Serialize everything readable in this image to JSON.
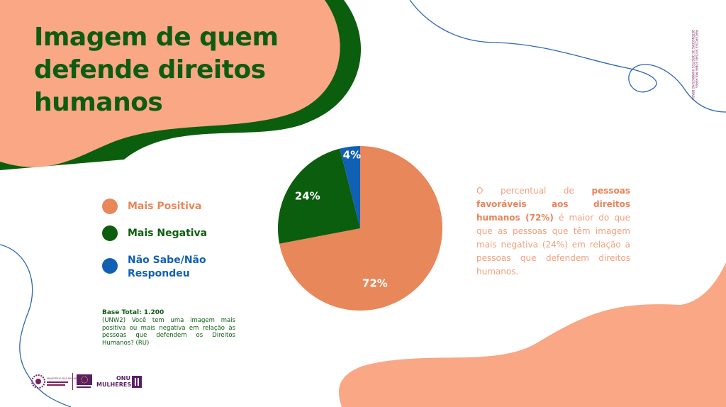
{
  "title": "Imagem de quem defende direitos humanos",
  "side_note": "PERCEPÇÕES SOCIAIS SOBRE MULHERES DEFENSORAS DE DIREITOS HUMANOS NO BRASIL",
  "colors": {
    "peach": "#f9a784",
    "orange": "#e8875a",
    "green": "#0b5e0d",
    "blue": "#1060b4",
    "line_blue": "#2e67b1",
    "text_light_orange": "#f0a07e"
  },
  "legend": [
    {
      "label": "Mais Positiva",
      "color": "#e8875a"
    },
    {
      "label": "Mais Negativa",
      "color": "#0b5e0d"
    },
    {
      "label": "Não Sabe/Não Respondeu",
      "color": "#1060b4"
    }
  ],
  "base": {
    "total": "Base Total: 1.200",
    "question": "(UNW2) Você tem uma imagem mais positiva ou mais negativa em relação às pessoas que defendem os Direitos Humanos? (RU)"
  },
  "description": {
    "before": "O percentual de",
    "highlight": "pessoas favoráveis aos direitos humanos (72%)",
    "after": "é maior do que que as pessoas que têm imagem mais negativa (24%) em relação a pessoas que defendem direitos humanos."
  },
  "chart_data": {
    "type": "pie",
    "title": "",
    "slices": [
      {
        "label": "Mais Positiva",
        "value": 72,
        "display": "72%",
        "color": "#e8875a"
      },
      {
        "label": "Mais Negativa",
        "value": 24,
        "display": "24%",
        "color": "#0b5e0d"
      },
      {
        "label": "Não Sabe/Não Respondeu",
        "value": 4,
        "display": "4%",
        "color": "#1060b4"
      }
    ],
    "start": "12 o'clock, clockwise"
  },
  "footer": {
    "logo1_text": "MINISTÉRIO DAS MULHERES",
    "logo3_text_top": "ONU",
    "logo3_text_bottom": "MULHERES"
  }
}
